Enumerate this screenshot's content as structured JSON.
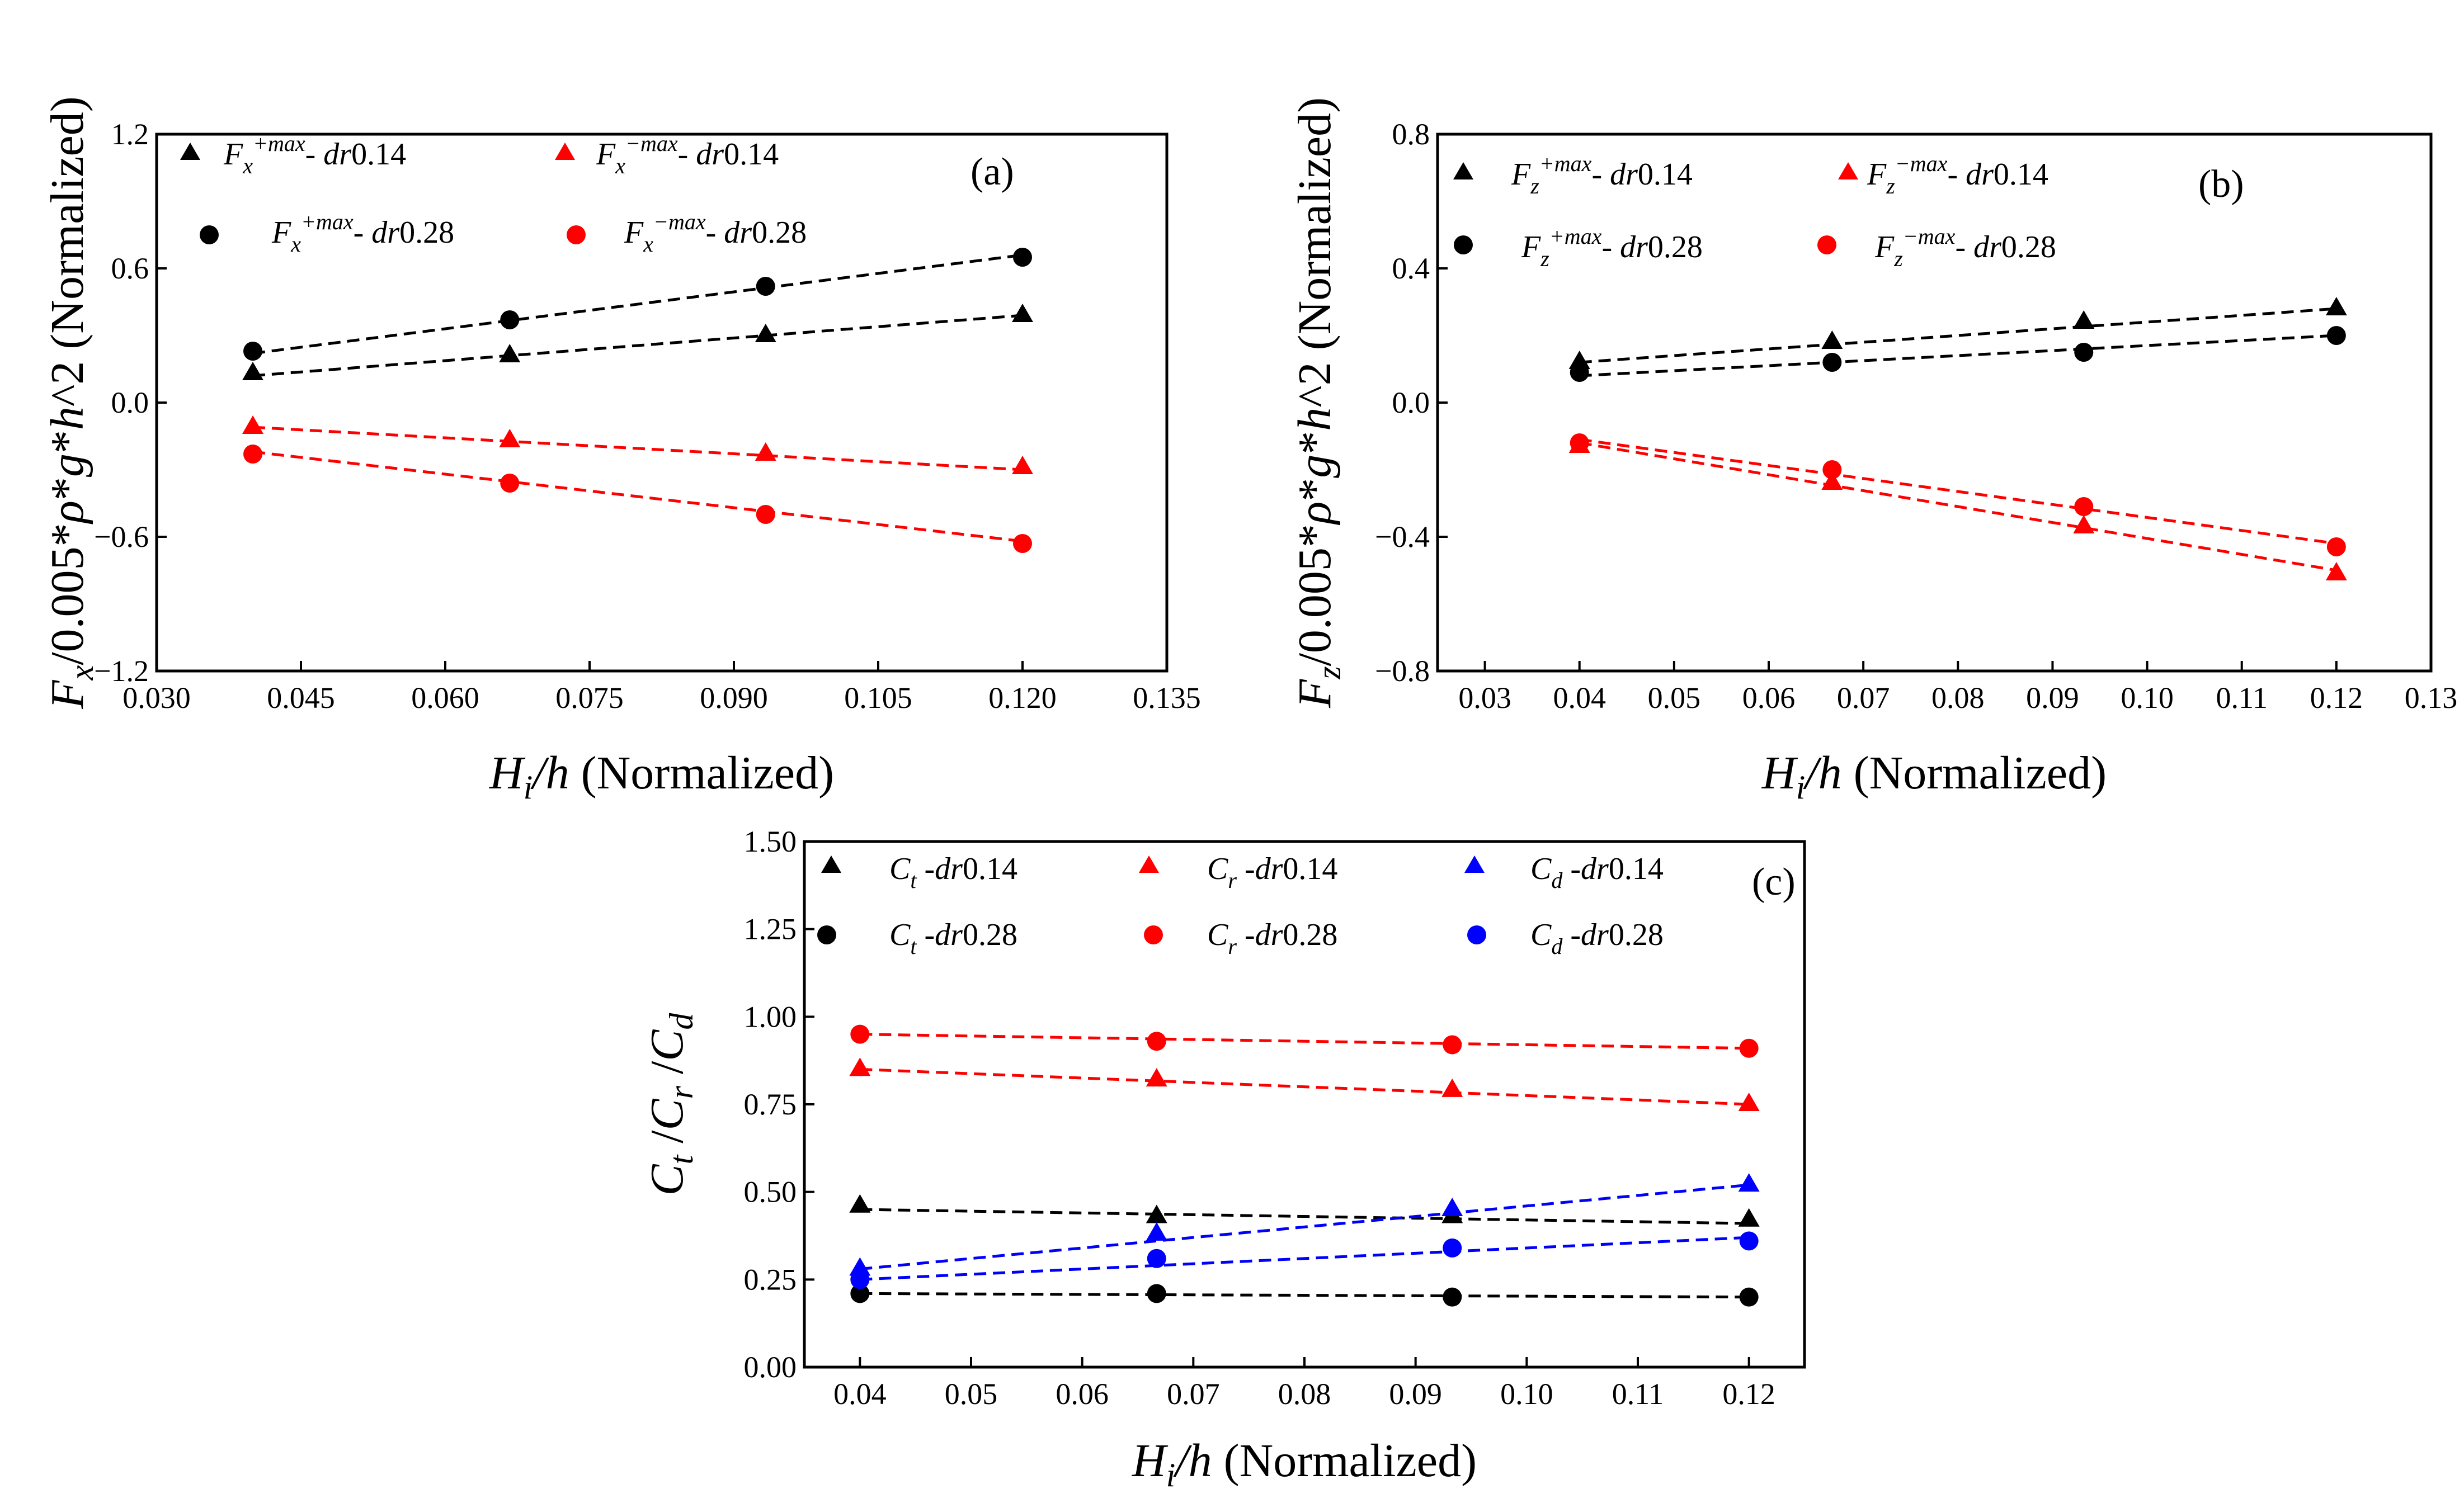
{
  "chart_data": [
    {
      "type": "scatter",
      "panel": "(a)",
      "xlabel": "H_i/h (Normalized)",
      "ylabel": "F_x/0.005*ρ*g*h^2 (Normalized)",
      "xlim": [
        0.03,
        0.135
      ],
      "ylim": [
        -1.2,
        1.2
      ],
      "xticks": [
        "0.030",
        "0.045",
        "0.060",
        "0.075",
        "0.090",
        "0.105",
        "0.120",
        "0.135"
      ],
      "yticks": [
        "−1.2",
        "−0.6",
        "0.0",
        "0.6",
        "1.2"
      ],
      "x": [
        0.04,
        0.0667,
        0.0933,
        0.12
      ],
      "series": [
        {
          "name": "Fx+max- dr0.14",
          "symbol": "triangle",
          "color": "#000000",
          "values": [
            0.13,
            0.21,
            0.3,
            0.39
          ],
          "fit": [
            0.12,
            0.39
          ]
        },
        {
          "name": "Fx+max- dr0.28",
          "symbol": "circle",
          "color": "#000000",
          "values": [
            0.23,
            0.37,
            0.52,
            0.65
          ],
          "fit": [
            0.22,
            0.66
          ]
        },
        {
          "name": "Fx−max- dr0.14",
          "symbol": "triangle",
          "color": "#ff0000",
          "values": [
            -0.11,
            -0.17,
            -0.23,
            -0.29
          ],
          "fit": [
            -0.11,
            -0.3
          ]
        },
        {
          "name": "Fx−max- dr0.28",
          "symbol": "circle",
          "color": "#ff0000",
          "values": [
            -0.23,
            -0.36,
            -0.5,
            -0.63
          ],
          "fit": [
            -0.22,
            -0.62
          ]
        }
      ],
      "legend": [
        {
          "sub": "x",
          "sup": "+max",
          "dr": "dr",
          "val": "0.14"
        },
        {
          "sub": "x",
          "sup": "−max",
          "dr": "dr",
          "val": "0.14"
        },
        {
          "sub": "x",
          "sup": "+max",
          "dr": "dr",
          "val": "0.28"
        },
        {
          "sub": "x",
          "sup": "−max",
          "dr": "dr",
          "val": "0.28"
        }
      ]
    },
    {
      "type": "scatter",
      "panel": "(b)",
      "xlabel": "H_i/h (Normalized)",
      "ylabel": "F_z/0.005*ρ*g*h^2 (Normalized)",
      "xlim": [
        0.025,
        0.13
      ],
      "ylim": [
        -0.8,
        0.8
      ],
      "xticks": [
        "0.03",
        "0.04",
        "0.05",
        "0.06",
        "0.07",
        "0.08",
        "0.09",
        "0.10",
        "0.11",
        "0.12",
        "0.13"
      ],
      "yticks": [
        "−0.8",
        "−0.4",
        "0.0",
        "0.4",
        "0.8"
      ],
      "x": [
        0.04,
        0.0667,
        0.0933,
        0.12
      ],
      "series": [
        {
          "name": "Fz+max- dr0.14",
          "symbol": "triangle",
          "color": "#000000",
          "values": [
            0.12,
            0.18,
            0.24,
            0.28
          ],
          "fit": [
            0.12,
            0.28
          ]
        },
        {
          "name": "Fz+max- dr0.28",
          "symbol": "circle",
          "color": "#000000",
          "values": [
            0.09,
            0.12,
            0.15,
            0.2
          ],
          "fit": [
            0.08,
            0.2
          ]
        },
        {
          "name": "Fz−max- dr0.14",
          "symbol": "triangle",
          "color": "#ff0000",
          "values": [
            -0.13,
            -0.24,
            -0.37,
            -0.51
          ],
          "fit": [
            -0.12,
            -0.5
          ]
        },
        {
          "name": "Fz−max- dr0.28",
          "symbol": "circle",
          "color": "#ff0000",
          "values": [
            -0.12,
            -0.2,
            -0.31,
            -0.43
          ],
          "fit": [
            -0.11,
            -0.42
          ]
        }
      ],
      "legend": [
        {
          "sub": "z",
          "sup": "+max",
          "dr": "dr",
          "val": "0.14"
        },
        {
          "sub": "z",
          "sup": "−max",
          "dr": "dr",
          "val": "0.14"
        },
        {
          "sub": "z",
          "sup": "+max",
          "dr": "dr",
          "val": "0.28"
        },
        {
          "sub": "z",
          "sup": "−max",
          "dr": "dr",
          "val": "0.28"
        }
      ]
    },
    {
      "type": "scatter",
      "panel": "(c)",
      "xlabel": "H_i/h (Normalized)",
      "ylabel": "C_t /C_r /C_d",
      "xlim": [
        0.035,
        0.125
      ],
      "ylim": [
        0.0,
        1.5
      ],
      "xticks": [
        "0.04",
        "0.05",
        "0.06",
        "0.07",
        "0.08",
        "0.09",
        "0.10",
        "0.11",
        "0.12"
      ],
      "yticks": [
        "0.00",
        "0.25",
        "0.50",
        "0.75",
        "1.00",
        "1.25",
        "1.50"
      ],
      "x": [
        0.04,
        0.0667,
        0.0933,
        0.12
      ],
      "series": [
        {
          "name": "Ct -dr0.14",
          "symbol": "triangle",
          "color": "#000000",
          "values": [
            0.46,
            0.43,
            0.43,
            0.42
          ],
          "fit": [
            0.45,
            0.41
          ]
        },
        {
          "name": "Ct -dr0.28",
          "symbol": "circle",
          "color": "#000000",
          "values": [
            0.21,
            0.21,
            0.2,
            0.2
          ],
          "fit": [
            0.21,
            0.2
          ]
        },
        {
          "name": "Cr -dr0.14",
          "symbol": "triangle",
          "color": "#ff0000",
          "values": [
            0.85,
            0.82,
            0.79,
            0.75
          ],
          "fit": [
            0.85,
            0.75
          ]
        },
        {
          "name": "Cr -dr0.28",
          "symbol": "circle",
          "color": "#ff0000",
          "values": [
            0.95,
            0.93,
            0.92,
            0.91
          ],
          "fit": [
            0.95,
            0.91
          ]
        },
        {
          "name": "Cd -dr0.14",
          "symbol": "triangle",
          "color": "#0000ff",
          "values": [
            0.28,
            0.38,
            0.45,
            0.52
          ],
          "fit": [
            0.28,
            0.52
          ]
        },
        {
          "name": "Cd -dr0.28",
          "symbol": "circle",
          "color": "#0000ff",
          "values": [
            0.25,
            0.31,
            0.34,
            0.36
          ],
          "fit": [
            0.25,
            0.37
          ]
        }
      ],
      "legend": [
        {
          "sub": "t",
          "dr": "dr",
          "val": "0.14"
        },
        {
          "sub": "r",
          "dr": "dr",
          "val": "0.14"
        },
        {
          "sub": "d",
          "dr": "dr",
          "val": "0.14"
        },
        {
          "sub": "t",
          "dr": "dr",
          "val": "0.28"
        },
        {
          "sub": "r",
          "dr": "dr",
          "val": "0.28"
        },
        {
          "sub": "d",
          "dr": "dr",
          "val": "0.28"
        }
      ]
    }
  ]
}
